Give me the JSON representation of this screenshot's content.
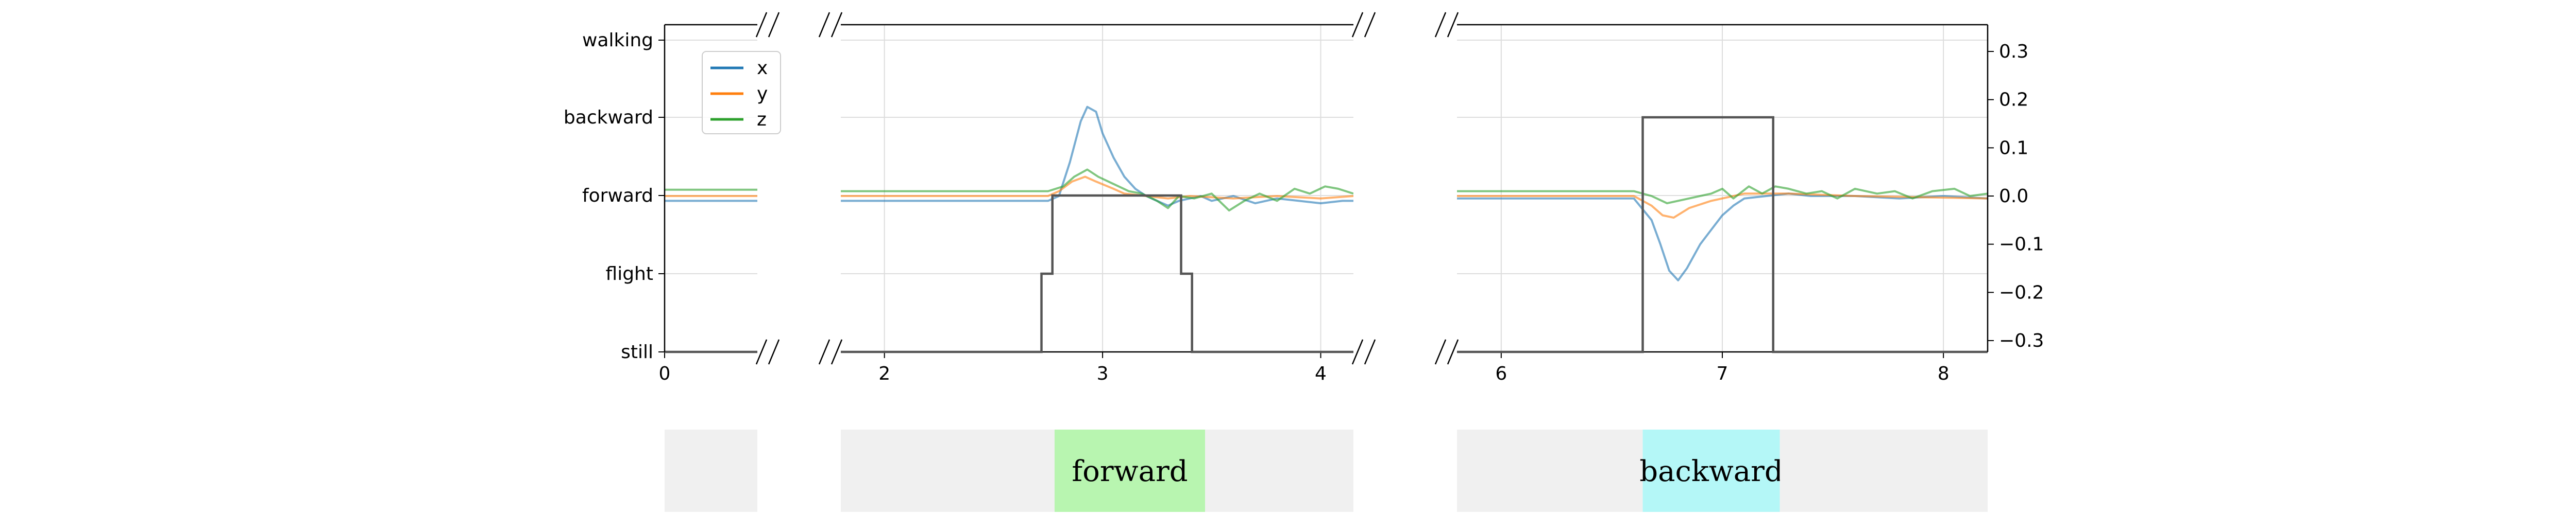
{
  "chart_data": {
    "type": "line",
    "title": "",
    "xlabel": "",
    "ylabel": "",
    "grid": true,
    "legend_placement": "top-left",
    "left_axis": {
      "categories": [
        "still",
        "flight",
        "forward",
        "backward",
        "walking"
      ]
    },
    "right_axis": {
      "ticks": [
        "0.3",
        "0.2",
        "0.1",
        "0.0",
        "−0.1",
        "−0.2",
        "−0.3"
      ],
      "tick_values": [
        0.3,
        0.2,
        0.1,
        0.0,
        -0.1,
        -0.2,
        -0.3
      ],
      "ylim": [
        -0.3,
        0.3
      ]
    },
    "panels": [
      {
        "xlim": [
          0,
          0.4
        ],
        "ticks": [
          0
        ],
        "tick_labels": [
          "0"
        ],
        "phase_segments": [
          {
            "x_start": 0,
            "x_end": 0.4,
            "label": "",
            "color": "#f0f0f0"
          }
        ]
      },
      {
        "xlim": [
          1.8,
          4.15
        ],
        "ticks": [
          2,
          3,
          4
        ],
        "tick_labels": [
          "2",
          "3",
          "4"
        ],
        "phase_segments": [
          {
            "x_start": 1.8,
            "x_end": 2.78,
            "label": "",
            "color": "#f0f0f0"
          },
          {
            "x_start": 2.78,
            "x_end": 3.47,
            "label": "forward",
            "color": "#b8f5b0"
          },
          {
            "x_start": 3.47,
            "x_end": 4.15,
            "label": "",
            "color": "#f0f0f0"
          }
        ]
      },
      {
        "xlim": [
          5.8,
          8.2
        ],
        "ticks": [
          6,
          7,
          8
        ],
        "tick_labels": [
          "6",
          "7",
          "8"
        ],
        "phase_segments": [
          {
            "x_start": 5.8,
            "x_end": 6.64,
            "label": "",
            "color": "#f0f0f0"
          },
          {
            "x_start": 6.64,
            "x_end": 7.26,
            "label": "backward",
            "color": "#b4f7f7"
          },
          {
            "x_start": 7.26,
            "x_end": 8.2,
            "label": "",
            "color": "#f0f0f0"
          }
        ]
      }
    ],
    "state_series": {
      "name": "state",
      "color": "#555555",
      "points": [
        [
          0,
          "still"
        ],
        [
          0.4,
          "still"
        ],
        [
          1.8,
          "still"
        ],
        [
          2.72,
          "still"
        ],
        [
          2.72,
          "flight"
        ],
        [
          2.77,
          "flight"
        ],
        [
          2.77,
          "forward"
        ],
        [
          3.36,
          "forward"
        ],
        [
          3.36,
          "flight"
        ],
        [
          3.41,
          "flight"
        ],
        [
          3.41,
          "still"
        ],
        [
          4.15,
          "still"
        ],
        [
          5.8,
          "still"
        ],
        [
          6.64,
          "still"
        ],
        [
          6.64,
          "backward"
        ],
        [
          7.23,
          "backward"
        ],
        [
          7.23,
          "still"
        ],
        [
          8.2,
          "still"
        ]
      ]
    },
    "series": [
      {
        "name": "x",
        "color": "#1f77b4",
        "segments": [
          [
            [
              0,
              -0.01
            ],
            [
              0.4,
              -0.01
            ]
          ],
          [
            [
              1.8,
              -0.01
            ],
            [
              2.5,
              -0.01
            ],
            [
              2.75,
              -0.01
            ],
            [
              2.8,
              0.0
            ],
            [
              2.85,
              0.07
            ],
            [
              2.9,
              0.155
            ],
            [
              2.93,
              0.185
            ],
            [
              2.97,
              0.175
            ],
            [
              3.0,
              0.13
            ],
            [
              3.05,
              0.08
            ],
            [
              3.1,
              0.04
            ],
            [
              3.15,
              0.015
            ],
            [
              3.2,
              0.0
            ],
            [
              3.25,
              -0.01
            ],
            [
              3.3,
              -0.02
            ],
            [
              3.35,
              -0.01
            ],
            [
              3.45,
              0.0
            ],
            [
              3.5,
              -0.01
            ],
            [
              3.6,
              0.0
            ],
            [
              3.7,
              -0.015
            ],
            [
              3.8,
              -0.005
            ],
            [
              3.9,
              -0.01
            ],
            [
              4.0,
              -0.015
            ],
            [
              4.1,
              -0.01
            ],
            [
              4.15,
              -0.01
            ]
          ],
          [
            [
              5.8,
              -0.005
            ],
            [
              6.2,
              -0.005
            ],
            [
              6.6,
              -0.005
            ],
            [
              6.68,
              -0.05
            ],
            [
              6.72,
              -0.1
            ],
            [
              6.76,
              -0.155
            ],
            [
              6.8,
              -0.175
            ],
            [
              6.84,
              -0.15
            ],
            [
              6.9,
              -0.1
            ],
            [
              6.95,
              -0.07
            ],
            [
              7.0,
              -0.04
            ],
            [
              7.05,
              -0.02
            ],
            [
              7.1,
              -0.005
            ],
            [
              7.2,
              0.0
            ],
            [
              7.3,
              0.005
            ],
            [
              7.4,
              0.0
            ],
            [
              7.6,
              0.0
            ],
            [
              7.8,
              -0.005
            ],
            [
              8.0,
              0.0
            ],
            [
              8.2,
              -0.005
            ]
          ]
        ]
      },
      {
        "name": "y",
        "color": "#ff7f0e",
        "segments": [
          [
            [
              0,
              0.0
            ],
            [
              0.4,
              0.0
            ]
          ],
          [
            [
              1.8,
              0.0
            ],
            [
              2.75,
              0.0
            ],
            [
              2.8,
              0.01
            ],
            [
              2.86,
              0.03
            ],
            [
              2.92,
              0.04
            ],
            [
              2.97,
              0.03
            ],
            [
              3.05,
              0.015
            ],
            [
              3.1,
              0.005
            ],
            [
              3.2,
              0.0
            ],
            [
              3.3,
              -0.005
            ],
            [
              3.4,
              0.0
            ],
            [
              3.6,
              -0.005
            ],
            [
              3.8,
              0.0
            ],
            [
              4.0,
              -0.005
            ],
            [
              4.15,
              0.0
            ]
          ],
          [
            [
              5.8,
              0.0
            ],
            [
              6.6,
              0.0
            ],
            [
              6.68,
              -0.02
            ],
            [
              6.73,
              -0.04
            ],
            [
              6.78,
              -0.045
            ],
            [
              6.85,
              -0.025
            ],
            [
              6.95,
              -0.01
            ],
            [
              7.1,
              0.005
            ],
            [
              7.3,
              0.005
            ],
            [
              7.6,
              0.0
            ],
            [
              8.2,
              -0.005
            ]
          ]
        ]
      },
      {
        "name": "z",
        "color": "#2ca02c",
        "segments": [
          [
            [
              0,
              0.013
            ],
            [
              0.4,
              0.013
            ]
          ],
          [
            [
              1.8,
              0.01
            ],
            [
              2.75,
              0.01
            ],
            [
              2.82,
              0.02
            ],
            [
              2.87,
              0.04
            ],
            [
              2.93,
              0.055
            ],
            [
              2.98,
              0.04
            ],
            [
              3.05,
              0.025
            ],
            [
              3.12,
              0.01
            ],
            [
              3.18,
              0.005
            ],
            [
              3.25,
              -0.01
            ],
            [
              3.3,
              -0.025
            ],
            [
              3.35,
              0.0
            ],
            [
              3.42,
              -0.005
            ],
            [
              3.5,
              0.005
            ],
            [
              3.58,
              -0.03
            ],
            [
              3.65,
              -0.01
            ],
            [
              3.72,
              0.005
            ],
            [
              3.8,
              -0.01
            ],
            [
              3.88,
              0.015
            ],
            [
              3.95,
              0.005
            ],
            [
              4.02,
              0.02
            ],
            [
              4.08,
              0.015
            ],
            [
              4.15,
              0.005
            ]
          ],
          [
            [
              5.8,
              0.01
            ],
            [
              6.2,
              0.01
            ],
            [
              6.6,
              0.01
            ],
            [
              6.68,
              0.0
            ],
            [
              6.75,
              -0.015
            ],
            [
              6.85,
              -0.005
            ],
            [
              6.95,
              0.005
            ],
            [
              7.0,
              0.015
            ],
            [
              7.05,
              -0.005
            ],
            [
              7.12,
              0.02
            ],
            [
              7.18,
              0.005
            ],
            [
              7.24,
              0.02
            ],
            [
              7.3,
              0.015
            ],
            [
              7.38,
              0.005
            ],
            [
              7.45,
              0.01
            ],
            [
              7.52,
              -0.005
            ],
            [
              7.6,
              0.015
            ],
            [
              7.7,
              0.005
            ],
            [
              7.78,
              0.01
            ],
            [
              7.86,
              -0.005
            ],
            [
              7.95,
              0.01
            ],
            [
              8.05,
              0.015
            ],
            [
              8.12,
              0.0
            ],
            [
              8.2,
              0.005
            ]
          ]
        ]
      }
    ]
  }
}
